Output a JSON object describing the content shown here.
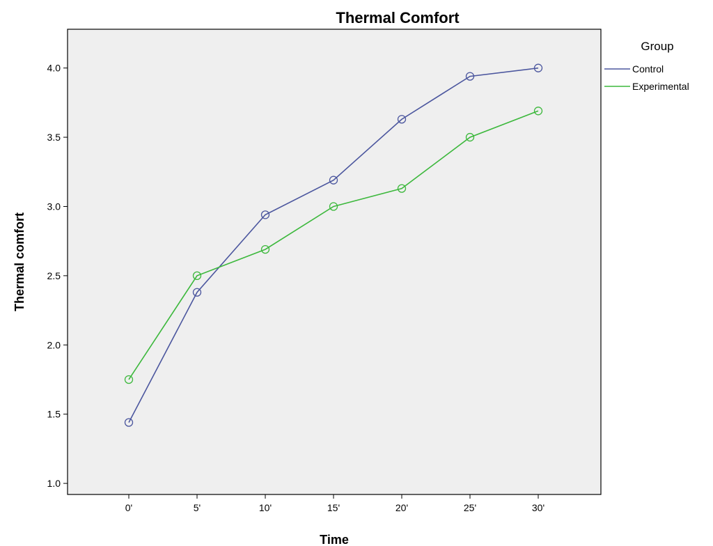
{
  "chart_data": {
    "type": "line",
    "title": "Thermal Comfort",
    "xlabel": "Time",
    "ylabel": "Thermal comfort",
    "categories": [
      "0'",
      "5'",
      "10'",
      "15'",
      "20'",
      "25'",
      "30'"
    ],
    "yticks": [
      "1.0",
      "1.5",
      "2.0",
      "2.5",
      "3.0",
      "3.5",
      "4.0"
    ],
    "ylim": [
      0.92,
      4.28
    ],
    "grid": false,
    "legend": {
      "title": "Group",
      "placement": "right"
    },
    "series": [
      {
        "name": "Control",
        "color": "#4b569e",
        "values": [
          1.44,
          2.38,
          2.94,
          3.19,
          3.63,
          3.94,
          4.0
        ]
      },
      {
        "name": "Experimental",
        "color": "#3cb83c",
        "values": [
          1.75,
          2.5,
          2.69,
          3.0,
          3.13,
          3.5,
          3.69
        ]
      }
    ],
    "plot_background": "#efefef",
    "marker": "open-circle"
  }
}
